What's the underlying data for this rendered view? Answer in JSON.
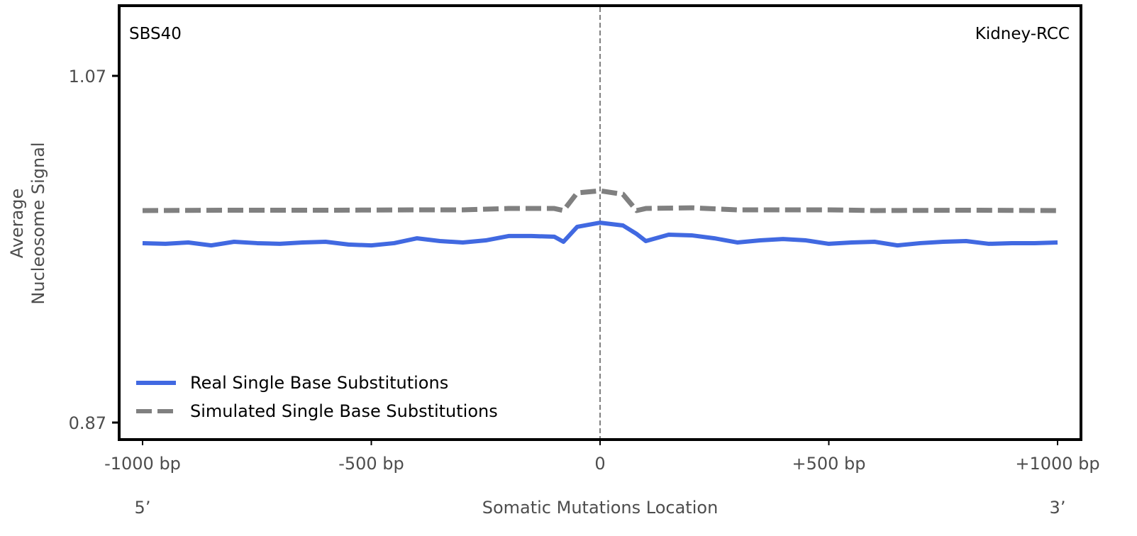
{
  "chart_data": {
    "type": "line",
    "signature_label": "SBS40",
    "tissue_label": "Kidney-RCC",
    "xlabel": "Somatic Mutations Location",
    "ylabel": [
      "Average",
      "Nucleosome Signal"
    ],
    "x_end_labels": {
      "left": "5’",
      "right": "3’"
    },
    "xlim": [
      -1000,
      1000
    ],
    "ylim": [
      0.87,
      1.07
    ],
    "x_ticks": [
      {
        "value": -1000,
        "label": "-1000 bp"
      },
      {
        "value": -500,
        "label": "-500 bp"
      },
      {
        "value": 0,
        "label": "0"
      },
      {
        "value": 500,
        "label": "+500 bp"
      },
      {
        "value": 1000,
        "label": "+1000 bp"
      }
    ],
    "y_ticks": [
      {
        "value": 1.07,
        "label": "1.07"
      },
      {
        "value": 0.87,
        "label": "0.87"
      }
    ],
    "vline_at": 0,
    "legend_placement": "lower-left",
    "series": [
      {
        "name": "Real Single Base Substitutions",
        "color": "#4169E1",
        "style": "solid",
        "x": [
          -1000,
          -950,
          -900,
          -850,
          -800,
          -750,
          -700,
          -650,
          -600,
          -550,
          -500,
          -450,
          -400,
          -350,
          -300,
          -250,
          -200,
          -150,
          -100,
          -80,
          -50,
          0,
          50,
          80,
          100,
          150,
          200,
          250,
          300,
          350,
          400,
          450,
          500,
          550,
          600,
          650,
          700,
          750,
          800,
          850,
          900,
          950,
          1000
        ],
        "values": [
          0.9735,
          0.9731,
          0.9739,
          0.9722,
          0.9743,
          0.9735,
          0.9731,
          0.9739,
          0.9743,
          0.9727,
          0.9722,
          0.9735,
          0.9763,
          0.9747,
          0.9739,
          0.9751,
          0.9776,
          0.9776,
          0.9772,
          0.9743,
          0.9829,
          0.9853,
          0.9837,
          0.9788,
          0.9747,
          0.9784,
          0.978,
          0.9763,
          0.9739,
          0.9751,
          0.9759,
          0.9751,
          0.9731,
          0.9739,
          0.9743,
          0.9722,
          0.9735,
          0.9743,
          0.9747,
          0.9731,
          0.9735,
          0.9735,
          0.9739
        ]
      },
      {
        "name": "Simulated Single Base Substitutions",
        "color": "#808080",
        "style": "dashed",
        "x": [
          -1000,
          -800,
          -600,
          -400,
          -300,
          -200,
          -100,
          -80,
          -50,
          0,
          50,
          80,
          100,
          200,
          300,
          500,
          600,
          800,
          1000
        ],
        "values": [
          0.9923,
          0.9925,
          0.9925,
          0.9927,
          0.9927,
          0.9935,
          0.9935,
          0.9923,
          1.0025,
          1.0037,
          1.0017,
          0.9923,
          0.9935,
          0.9939,
          0.9927,
          0.9927,
          0.9923,
          0.9925,
          0.9923
        ]
      }
    ]
  }
}
